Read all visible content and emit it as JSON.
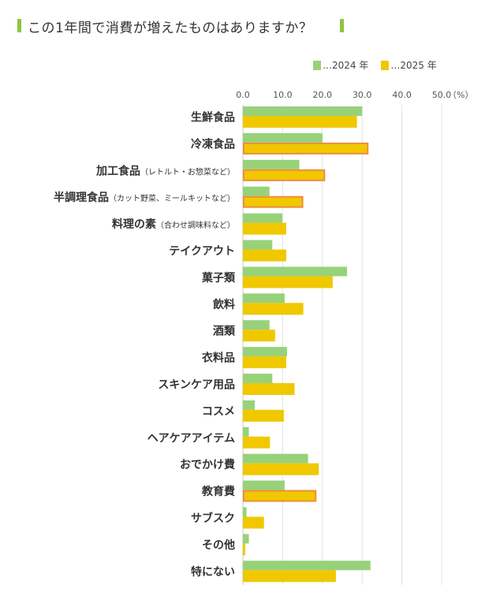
{
  "title": "この1年間で消費が増えたものはありますか？",
  "chart_data": {
    "type": "bar",
    "orientation": "horizontal",
    "title": "この1年間で消費が増えたものはありますか？",
    "xlabel": "",
    "ylabel": "",
    "unit_label": "（%）",
    "xlim": [
      0,
      50
    ],
    "ticks": [
      "0.0",
      "10.0",
      "20.0",
      "30.0",
      "40.0",
      "50.0"
    ],
    "tick_values": [
      0,
      10,
      20,
      30,
      40,
      50
    ],
    "grid": true,
    "legend_position": "top-right",
    "categories": [
      {
        "label": "生鮮食品",
        "note": ""
      },
      {
        "label": "冷凍食品",
        "note": ""
      },
      {
        "label": "加工食品",
        "note": "（レトルト・お惣菜など）"
      },
      {
        "label": "半調理食品",
        "note": "（カット野菜、ミールキットなど）"
      },
      {
        "label": "料理の素",
        "note": "（合わせ調味料など）"
      },
      {
        "label": "テイクアウト",
        "note": ""
      },
      {
        "label": "菓子類",
        "note": ""
      },
      {
        "label": "飲料",
        "note": ""
      },
      {
        "label": "酒類",
        "note": ""
      },
      {
        "label": "衣料品",
        "note": ""
      },
      {
        "label": "スキンケア用品",
        "note": ""
      },
      {
        "label": "コスメ",
        "note": ""
      },
      {
        "label": "ヘアケアアイテム",
        "note": ""
      },
      {
        "label": "おでかけ費",
        "note": ""
      },
      {
        "label": "教育費",
        "note": ""
      },
      {
        "label": "サブスク",
        "note": ""
      },
      {
        "label": "その他",
        "note": ""
      },
      {
        "label": "特にない",
        "note": ""
      }
    ],
    "series": [
      {
        "name": "…2024 年",
        "color": "#97d27a",
        "values": [
          30.0,
          20.0,
          14.2,
          6.7,
          9.9,
          7.4,
          26.2,
          10.5,
          6.7,
          11.1,
          7.4,
          3.0,
          1.5,
          16.4,
          10.5,
          0.9,
          1.5,
          32.1
        ]
      },
      {
        "name": "…2025 年",
        "color": "#f0c800",
        "values": [
          28.7,
          31.6,
          20.7,
          15.2,
          10.9,
          10.9,
          22.6,
          15.2,
          8.1,
          10.9,
          13.0,
          10.3,
          6.8,
          19.1,
          18.5,
          5.3,
          0.6,
          23.4
        ]
      }
    ],
    "highlighted_2025": [
      "冷凍食品",
      "加工食品",
      "半調理食品",
      "教育費"
    ],
    "highlight_color": "#f08c3c"
  }
}
